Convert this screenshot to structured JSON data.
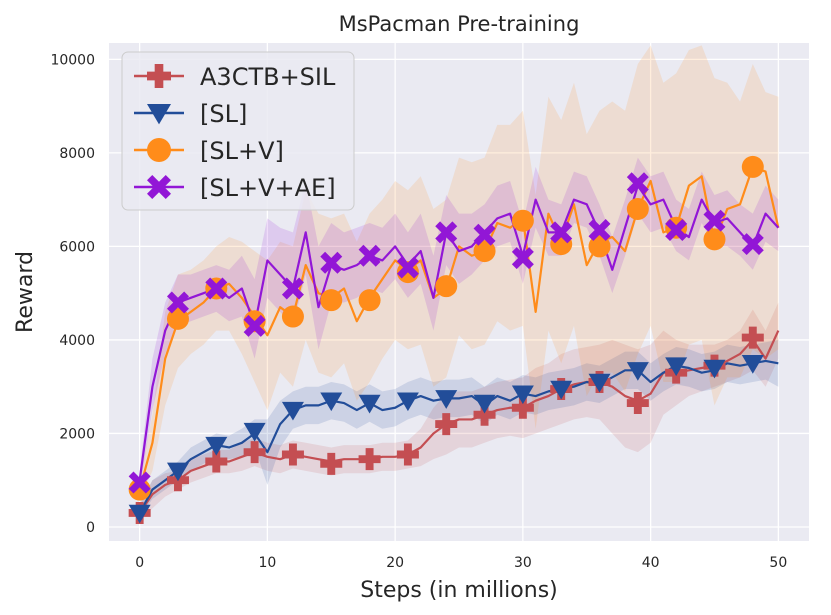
{
  "chart_data": {
    "type": "line",
    "title": "MsPacman Pre-training",
    "xlabel": "Steps (in millions)",
    "ylabel": "Reward",
    "xlim": [
      -2.4,
      52.4
    ],
    "ylim": [
      -300,
      10350
    ],
    "xticks": [
      0,
      10,
      20,
      30,
      40,
      50
    ],
    "yticks": [
      0,
      2000,
      4000,
      6000,
      8000,
      10000
    ],
    "grid": true,
    "legend_position": "top-left",
    "series": [
      {
        "name": "A3CTB+SIL",
        "color": "#c44e52",
        "marker": "plus",
        "x": [
          0,
          1,
          2,
          3,
          4,
          5,
          6,
          7,
          8,
          9,
          10,
          11,
          12,
          13,
          14,
          15,
          16,
          17,
          18,
          19,
          20,
          21,
          22,
          23,
          24,
          25,
          26,
          27,
          28,
          29,
          30,
          31,
          32,
          33,
          34,
          35,
          36,
          37,
          38,
          39,
          40,
          41,
          42,
          43,
          44,
          45,
          46,
          47,
          48,
          49,
          50
        ],
        "y": [
          300,
          700,
          900,
          1000,
          1200,
          1300,
          1400,
          1400,
          1500,
          1600,
          1500,
          1450,
          1550,
          1500,
          1450,
          1400,
          1450,
          1450,
          1450,
          1500,
          1500,
          1550,
          1700,
          2000,
          2200,
          2300,
          2300,
          2400,
          2500,
          2550,
          2550,
          2700,
          2800,
          2950,
          3050,
          3100,
          3100,
          3000,
          2800,
          2700,
          2850,
          3300,
          3300,
          3350,
          3400,
          3450,
          3550,
          3700,
          4000,
          3600,
          4200
        ],
        "low": [
          100,
          400,
          650,
          800,
          950,
          1050,
          1150,
          1150,
          1200,
          1300,
          1200,
          1150,
          1250,
          1200,
          1150,
          1100,
          1150,
          1150,
          1150,
          1200,
          1200,
          1250,
          1300,
          1450,
          1550,
          1700,
          1700,
          1800,
          1900,
          1950,
          1900,
          2000,
          2100,
          2200,
          2300,
          2350,
          2300,
          2000,
          1700,
          1600,
          1800,
          2400,
          2600,
          2800,
          2900,
          3000,
          3100,
          3200,
          3350,
          3000,
          3600
        ],
        "high": [
          500,
          1000,
          1150,
          1200,
          1450,
          1550,
          1650,
          1650,
          1800,
          1900,
          1800,
          1750,
          1850,
          1800,
          1750,
          1700,
          1750,
          1750,
          1750,
          1800,
          1800,
          1850,
          2100,
          2550,
          2850,
          2900,
          2900,
          3000,
          3100,
          3150,
          3200,
          3400,
          3500,
          3700,
          3800,
          3850,
          3900,
          4000,
          3900,
          3800,
          3900,
          4200,
          4000,
          3900,
          3900,
          3900,
          4000,
          4200,
          4650,
          4200,
          4800
        ],
        "markers": [
          [
            0,
            300
          ],
          [
            3,
            1000
          ],
          [
            6,
            1400
          ],
          [
            9,
            1600
          ],
          [
            12,
            1550
          ],
          [
            15,
            1350
          ],
          [
            18,
            1450
          ],
          [
            21,
            1550
          ],
          [
            24,
            2200
          ],
          [
            27,
            2400
          ],
          [
            30,
            2550
          ],
          [
            33,
            2950
          ],
          [
            36,
            3100
          ],
          [
            39,
            2650
          ],
          [
            42,
            3300
          ],
          [
            45,
            3450
          ],
          [
            48,
            4050
          ]
        ]
      },
      {
        "name": "[SL]",
        "color": "#224d99",
        "marker": "triangle-down",
        "x": [
          0,
          1,
          2,
          3,
          4,
          5,
          6,
          7,
          8,
          9,
          10,
          11,
          12,
          13,
          14,
          15,
          16,
          17,
          18,
          19,
          20,
          21,
          22,
          23,
          24,
          25,
          26,
          27,
          28,
          29,
          30,
          31,
          32,
          33,
          34,
          35,
          36,
          37,
          38,
          39,
          40,
          41,
          42,
          43,
          44,
          45,
          46,
          47,
          48,
          49,
          50
        ],
        "y": [
          300,
          800,
          1000,
          1200,
          1450,
          1600,
          1750,
          1700,
          1800,
          2000,
          1600,
          2200,
          2500,
          2600,
          2600,
          2700,
          2650,
          2500,
          2650,
          2500,
          2550,
          2700,
          2800,
          2700,
          2750,
          2750,
          2800,
          2600,
          2800,
          2700,
          2850,
          2800,
          2900,
          2950,
          3000,
          3100,
          3050,
          3200,
          3350,
          3350,
          3100,
          3300,
          3450,
          3400,
          3300,
          3350,
          3500,
          3450,
          3500,
          3550,
          3500
        ],
        "low": [
          200,
          600,
          800,
          1000,
          1200,
          1350,
          1500,
          1450,
          1500,
          1700,
          900,
          1700,
          2100,
          2200,
          2200,
          2300,
          2250,
          2100,
          2250,
          2100,
          2150,
          2300,
          2400,
          2300,
          2350,
          2350,
          2400,
          2200,
          2400,
          2300,
          2450,
          2400,
          2500,
          2550,
          2600,
          2700,
          2650,
          2800,
          2950,
          2950,
          2700,
          2900,
          3050,
          3000,
          2900,
          2950,
          3100,
          3050,
          3100,
          3150,
          3000
        ],
        "high": [
          450,
          1000,
          1200,
          1400,
          1700,
          1850,
          2000,
          1950,
          2100,
          2300,
          2300,
          2700,
          2900,
          3000,
          3000,
          3100,
          3050,
          2900,
          3050,
          2900,
          2950,
          3100,
          3200,
          3100,
          3150,
          3150,
          3200,
          3000,
          3200,
          3100,
          3250,
          3200,
          3300,
          3350,
          3400,
          3500,
          3450,
          3600,
          3750,
          3750,
          3500,
          3700,
          3850,
          3800,
          3700,
          3750,
          3900,
          3850,
          3900,
          3950,
          4000
        ],
        "markers": [
          [
            0,
            300
          ],
          [
            3,
            1200
          ],
          [
            6,
            1750
          ],
          [
            9,
            2050
          ],
          [
            12,
            2500
          ],
          [
            15,
            2700
          ],
          [
            18,
            2650
          ],
          [
            21,
            2700
          ],
          [
            24,
            2750
          ],
          [
            27,
            2650
          ],
          [
            30,
            2850
          ],
          [
            33,
            2950
          ],
          [
            36,
            3100
          ],
          [
            39,
            3350
          ],
          [
            42,
            3450
          ],
          [
            45,
            3400
          ],
          [
            48,
            3500
          ]
        ]
      },
      {
        "name": "[SL+V]",
        "color": "#ff8c1a",
        "marker": "circle",
        "x": [
          0,
          1,
          2,
          3,
          4,
          5,
          6,
          7,
          8,
          9,
          10,
          11,
          12,
          13,
          14,
          15,
          16,
          17,
          18,
          19,
          20,
          21,
          22,
          23,
          24,
          25,
          26,
          27,
          28,
          29,
          30,
          31,
          32,
          33,
          34,
          35,
          36,
          37,
          38,
          39,
          40,
          41,
          42,
          43,
          44,
          45,
          46,
          47,
          48,
          49,
          50
        ],
        "y": [
          800,
          1800,
          3600,
          4400,
          4600,
          4800,
          5100,
          5200,
          4900,
          4500,
          4100,
          4700,
          4500,
          5600,
          5000,
          4900,
          5100,
          4400,
          4900,
          5300,
          5700,
          5500,
          5700,
          4900,
          5100,
          6000,
          5800,
          5900,
          6500,
          6400,
          6600,
          4600,
          6700,
          6100,
          6900,
          5600,
          6100,
          6200,
          5900,
          6800,
          7400,
          6300,
          6400,
          7300,
          7500,
          6100,
          6800,
          6900,
          7700,
          7600,
          6400
        ],
        "low": [
          600,
          1200,
          2600,
          3400,
          3700,
          3900,
          4200,
          4200,
          3700,
          3100,
          2500,
          3300,
          3000,
          4000,
          3300,
          3200,
          3500,
          2700,
          3100,
          3600,
          4000,
          3800,
          3900,
          3000,
          3200,
          4100,
          3800,
          3900,
          4400,
          4200,
          4300,
          2100,
          4200,
          3500,
          4300,
          2800,
          3300,
          3300,
          2900,
          3700,
          4300,
          3100,
          3100,
          3900,
          4000,
          2600,
          3200,
          3200,
          3800,
          3600,
          3800
        ],
        "high": [
          1000,
          2400,
          4600,
          5400,
          5500,
          5700,
          6000,
          6200,
          6100,
          5900,
          5700,
          6100,
          6000,
          7200,
          6700,
          6600,
          6700,
          6100,
          6700,
          7000,
          7400,
          7200,
          7500,
          6800,
          7000,
          7900,
          7800,
          7900,
          8600,
          8600,
          8900,
          7100,
          9200,
          8700,
          9500,
          8400,
          8900,
          9100,
          8900,
          9900,
          10300,
          9500,
          9700,
          10200,
          10300,
          9600,
          9500,
          9100,
          9900,
          9300,
          9200
        ],
        "markers": [
          [
            0,
            800
          ],
          [
            3,
            4450
          ],
          [
            6,
            5100
          ],
          [
            9,
            4400
          ],
          [
            12,
            4500
          ],
          [
            15,
            4850
          ],
          [
            18,
            4850
          ],
          [
            21,
            5450
          ],
          [
            24,
            5150
          ],
          [
            27,
            5900
          ],
          [
            30,
            6550
          ],
          [
            33,
            6050
          ],
          [
            36,
            6000
          ],
          [
            39,
            6800
          ],
          [
            42,
            6400
          ],
          [
            45,
            6150
          ],
          [
            48,
            7700
          ]
        ]
      },
      {
        "name": "[SL+V+AE]",
        "color": "#9216d6",
        "marker": "x",
        "x": [
          0,
          1,
          2,
          3,
          4,
          5,
          6,
          7,
          8,
          9,
          10,
          11,
          12,
          13,
          14,
          15,
          16,
          17,
          18,
          19,
          20,
          21,
          22,
          23,
          24,
          25,
          26,
          27,
          28,
          29,
          30,
          31,
          32,
          33,
          34,
          35,
          36,
          37,
          38,
          39,
          40,
          41,
          42,
          43,
          44,
          45,
          46,
          47,
          48,
          49,
          50
        ],
        "y": [
          1000,
          3000,
          4200,
          4800,
          4900,
          5000,
          5100,
          4900,
          5100,
          4300,
          5700,
          5400,
          5100,
          6300,
          4700,
          5600,
          5500,
          5600,
          5800,
          5700,
          6000,
          5600,
          5900,
          4900,
          6300,
          5900,
          6000,
          6300,
          6600,
          6700,
          5800,
          7000,
          6300,
          6300,
          7000,
          6900,
          6300,
          5500,
          6400,
          7300,
          6900,
          7000,
          6400,
          6200,
          7000,
          6500,
          6600,
          6300,
          6000,
          6700,
          6400
        ],
        "low": [
          800,
          2500,
          3700,
          4300,
          4400,
          4500,
          4600,
          4400,
          4500,
          3600,
          4900,
          4600,
          4300,
          5400,
          3800,
          4800,
          4800,
          4900,
          5100,
          5000,
          5300,
          4900,
          5200,
          4200,
          5600,
          5200,
          5400,
          5700,
          6000,
          6100,
          5200,
          6400,
          5800,
          5800,
          6500,
          6400,
          5800,
          5000,
          5800,
          6700,
          6300,
          6400,
          5900,
          5700,
          6500,
          6000,
          6000,
          5800,
          5500,
          6100,
          5900
        ],
        "high": [
          1200,
          3600,
          4800,
          5400,
          5400,
          5500,
          5600,
          5500,
          5800,
          5300,
          6600,
          6400,
          6300,
          7400,
          6000,
          6500,
          6300,
          6400,
          6500,
          6400,
          6700,
          6300,
          6700,
          5800,
          7100,
          6700,
          6700,
          6900,
          7300,
          7400,
          6500,
          7700,
          7000,
          6900,
          7600,
          7500,
          6900,
          6200,
          7000,
          7900,
          7500,
          7600,
          7000,
          6800,
          7600,
          7100,
          7200,
          6900,
          6700,
          7300,
          7000
        ],
        "markers": [
          [
            0,
            950
          ],
          [
            3,
            4800
          ],
          [
            6,
            5100
          ],
          [
            9,
            4300
          ],
          [
            12,
            5100
          ],
          [
            15,
            5650
          ],
          [
            18,
            5800
          ],
          [
            21,
            5550
          ],
          [
            24,
            6300
          ],
          [
            27,
            6250
          ],
          [
            30,
            5750
          ],
          [
            33,
            6300
          ],
          [
            36,
            6350
          ],
          [
            39,
            7350
          ],
          [
            42,
            6350
          ],
          [
            45,
            6550
          ],
          [
            48,
            6050
          ]
        ]
      }
    ]
  }
}
